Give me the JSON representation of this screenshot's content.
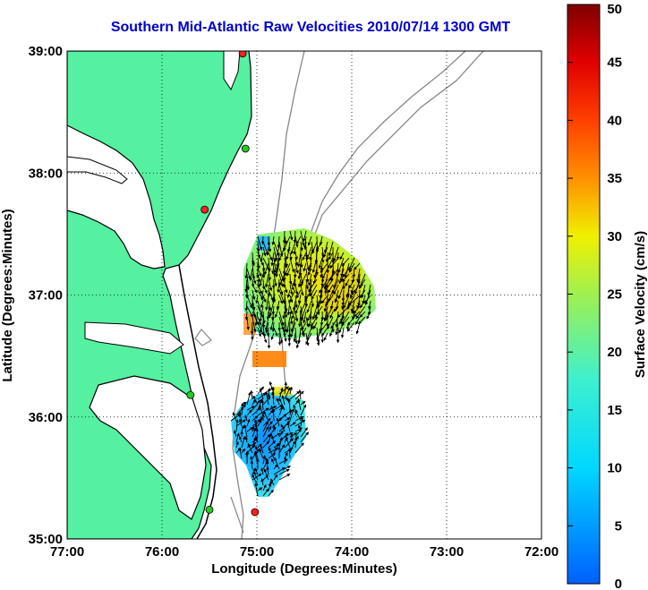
{
  "title": "Southern Mid-Atlantic Raw Velocities 2010/07/14 1300 GMT",
  "map": {
    "xlabel": "Longitude (Degrees:Minutes)",
    "ylabel": "Latitude (Degrees:Minutes)",
    "x_ticks": [
      "77:00",
      "76:00",
      "75:00",
      "74:00",
      "73:00",
      "72:00"
    ],
    "y_ticks": [
      "39:00",
      "38:00",
      "37:00",
      "36:00",
      "35:00"
    ],
    "lon_range": [
      -77,
      -72
    ],
    "lat_range": [
      35,
      39
    ],
    "grid": "dotted",
    "land_color": "#55f0a0",
    "coast_color": "#000000",
    "bathymetry_color": "#888888"
  },
  "stations": [
    {
      "lon": -75.15,
      "lat": 38.98,
      "color": "#ff2020"
    },
    {
      "lon": -75.12,
      "lat": 38.2,
      "color": "#22cc22"
    },
    {
      "lon": -75.55,
      "lat": 37.7,
      "color": "#ff2020"
    },
    {
      "lon": -75.7,
      "lat": 36.18,
      "color": "#22cc22"
    },
    {
      "lon": -75.5,
      "lat": 35.24,
      "color": "#22cc22"
    },
    {
      "lon": -75.02,
      "lat": 35.22,
      "color": "#ff2020"
    }
  ],
  "colorbar": {
    "label": "Surface Velocity (cm/s)",
    "ticks": [
      "0",
      "5",
      "10",
      "15",
      "20",
      "25",
      "30",
      "35",
      "40",
      "45",
      "50"
    ],
    "range": [
      0,
      50
    ],
    "units": "cm/s"
  }
}
